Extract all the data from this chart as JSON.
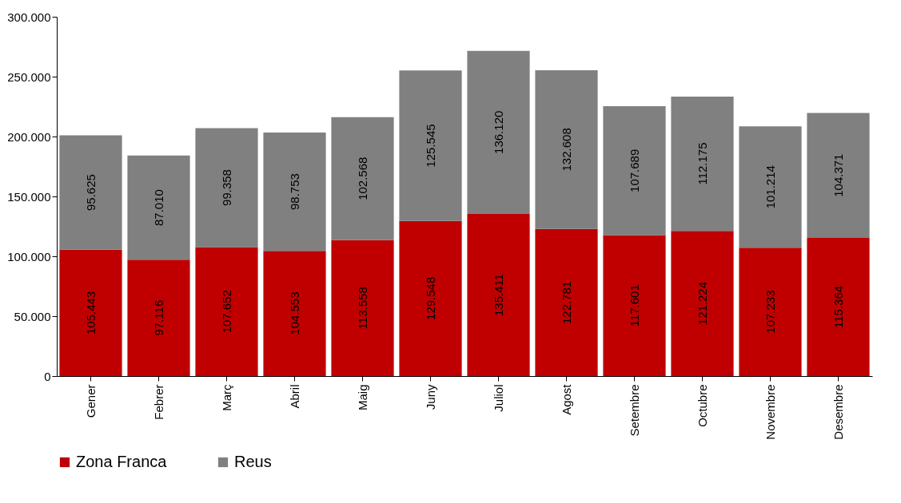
{
  "chart_data": {
    "type": "bar",
    "stacked": true,
    "categories": [
      "Gener",
      "Febrer",
      "Març",
      "Abril",
      "Maig",
      "Juny",
      "Juliol",
      "Agost",
      "Setembre",
      "Octubre",
      "Novembre",
      "Desembre"
    ],
    "series": [
      {
        "name": "Zona Franca",
        "color": "#c00000",
        "values": [
          105443,
          97116,
          107652,
          104553,
          113558,
          129548,
          135411,
          122781,
          117601,
          121224,
          107233,
          115364
        ],
        "value_labels": [
          "105.443",
          "97.116",
          "107.652",
          "104.553",
          "113.558",
          "129.548",
          "135.411",
          "122.781",
          "117.601",
          "121.224",
          "107.233",
          "115.364"
        ]
      },
      {
        "name": "Reus",
        "color": "#808080",
        "values": [
          95625,
          87010,
          99358,
          98753,
          102568,
          125545,
          136120,
          132608,
          107689,
          112175,
          101214,
          104371
        ],
        "value_labels": [
          "95.625",
          "87.010",
          "99.358",
          "98.753",
          "102.568",
          "125.545",
          "136.120",
          "132.608",
          "107.689",
          "112.175",
          "101.214",
          "104.371"
        ]
      }
    ],
    "ylim": [
      0,
      300000
    ],
    "yticks": [
      {
        "value": 0,
        "label": "0"
      },
      {
        "value": 50000,
        "label": "50.000"
      },
      {
        "value": 100000,
        "label": "100.000"
      },
      {
        "value": 150000,
        "label": "150.000"
      },
      {
        "value": 200000,
        "label": "200.000"
      },
      {
        "value": 250000,
        "label": "250.000"
      },
      {
        "value": 300000,
        "label": "300.000"
      }
    ],
    "grid": false,
    "legend": "bottom"
  }
}
